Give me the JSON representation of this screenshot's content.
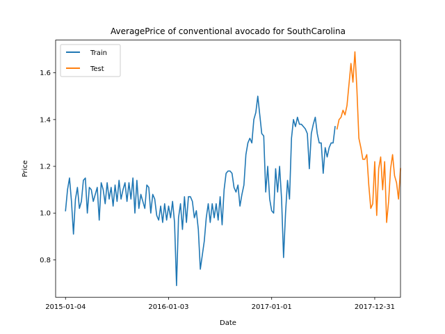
{
  "chart_data": {
    "type": "line",
    "title": "AveragePrice of conventional avocado for SouthCarolina",
    "xlabel": "Date",
    "ylabel": "Price",
    "x_type": "date",
    "xlim": [
      "2014-11-30",
      "2018-04-01"
    ],
    "ylim": [
      0.64,
      1.74
    ],
    "xticks": [
      "2015-01-04",
      "2016-01-03",
      "2017-01-01",
      "2017-12-31"
    ],
    "yticks": [
      0.8,
      1.0,
      1.2,
      1.4,
      1.6
    ],
    "ytick_labels": [
      "0.8",
      "1.0",
      "1.2",
      "1.4",
      "1.6"
    ],
    "grid": false,
    "legend_position": "top-left",
    "series": [
      {
        "name": "Train",
        "color": "#1f77b4",
        "points": [
          [
            "2015-01-04",
            1.01
          ],
          [
            "2015-01-11",
            1.1
          ],
          [
            "2015-01-18",
            1.15
          ],
          [
            "2015-01-25",
            1.05
          ],
          [
            "2015-02-01",
            0.91
          ],
          [
            "2015-02-08",
            1.06
          ],
          [
            "2015-02-15",
            1.11
          ],
          [
            "2015-02-22",
            1.02
          ],
          [
            "2015-03-01",
            1.05
          ],
          [
            "2015-03-08",
            1.14
          ],
          [
            "2015-03-15",
            1.15
          ],
          [
            "2015-03-22",
            1.0
          ],
          [
            "2015-03-29",
            1.11
          ],
          [
            "2015-04-05",
            1.1
          ],
          [
            "2015-04-12",
            1.05
          ],
          [
            "2015-04-19",
            1.08
          ],
          [
            "2015-04-26",
            1.11
          ],
          [
            "2015-05-03",
            0.97
          ],
          [
            "2015-05-10",
            1.13
          ],
          [
            "2015-05-17",
            1.1
          ],
          [
            "2015-05-24",
            1.04
          ],
          [
            "2015-05-31",
            1.13
          ],
          [
            "2015-06-07",
            1.06
          ],
          [
            "2015-06-14",
            1.11
          ],
          [
            "2015-06-21",
            1.03
          ],
          [
            "2015-06-28",
            1.12
          ],
          [
            "2015-07-05",
            1.05
          ],
          [
            "2015-07-12",
            1.14
          ],
          [
            "2015-07-19",
            1.06
          ],
          [
            "2015-07-26",
            1.1
          ],
          [
            "2015-08-02",
            1.13
          ],
          [
            "2015-08-09",
            1.05
          ],
          [
            "2015-08-16",
            1.13
          ],
          [
            "2015-08-23",
            1.06
          ],
          [
            "2015-08-30",
            1.15
          ],
          [
            "2015-09-06",
            1.0
          ],
          [
            "2015-09-13",
            1.14
          ],
          [
            "2015-09-20",
            1.02
          ],
          [
            "2015-09-27",
            1.08
          ],
          [
            "2015-10-04",
            1.05
          ],
          [
            "2015-10-11",
            1.02
          ],
          [
            "2015-10-18",
            1.12
          ],
          [
            "2015-10-25",
            1.11
          ],
          [
            "2015-11-01",
            1.0
          ],
          [
            "2015-11-08",
            1.08
          ],
          [
            "2015-11-15",
            1.06
          ],
          [
            "2015-11-22",
            0.99
          ],
          [
            "2015-11-29",
            0.97
          ],
          [
            "2015-12-06",
            1.03
          ],
          [
            "2015-12-13",
            0.96
          ],
          [
            "2015-12-20",
            1.04
          ],
          [
            "2015-12-27",
            0.97
          ],
          [
            "2016-01-03",
            1.03
          ],
          [
            "2016-01-10",
            0.98
          ],
          [
            "2016-01-17",
            1.05
          ],
          [
            "2016-01-24",
            0.96
          ],
          [
            "2016-01-31",
            0.69
          ],
          [
            "2016-02-07",
            0.98
          ],
          [
            "2016-02-14",
            1.04
          ],
          [
            "2016-02-21",
            0.93
          ],
          [
            "2016-02-28",
            1.07
          ],
          [
            "2016-03-06",
            0.96
          ],
          [
            "2016-03-13",
            1.07
          ],
          [
            "2016-03-20",
            1.07
          ],
          [
            "2016-03-27",
            1.05
          ],
          [
            "2016-04-03",
            0.98
          ],
          [
            "2016-04-10",
            1.01
          ],
          [
            "2016-04-17",
            0.93
          ],
          [
            "2016-04-24",
            0.76
          ],
          [
            "2016-05-01",
            0.82
          ],
          [
            "2016-05-08",
            0.88
          ],
          [
            "2016-05-15",
            0.98
          ],
          [
            "2016-05-22",
            1.04
          ],
          [
            "2016-05-29",
            0.96
          ],
          [
            "2016-06-05",
            1.04
          ],
          [
            "2016-06-12",
            0.98
          ],
          [
            "2016-06-19",
            1.04
          ],
          [
            "2016-06-26",
            0.97
          ],
          [
            "2016-07-03",
            1.07
          ],
          [
            "2016-07-10",
            0.95
          ],
          [
            "2016-07-17",
            1.1
          ],
          [
            "2016-07-24",
            1.17
          ],
          [
            "2016-07-31",
            1.18
          ],
          [
            "2016-08-07",
            1.18
          ],
          [
            "2016-08-14",
            1.17
          ],
          [
            "2016-08-21",
            1.11
          ],
          [
            "2016-08-28",
            1.09
          ],
          [
            "2016-09-04",
            1.12
          ],
          [
            "2016-09-11",
            1.03
          ],
          [
            "2016-09-18",
            1.08
          ],
          [
            "2016-09-25",
            1.12
          ],
          [
            "2016-10-02",
            1.25
          ],
          [
            "2016-10-09",
            1.3
          ],
          [
            "2016-10-16",
            1.32
          ],
          [
            "2016-10-23",
            1.3
          ],
          [
            "2016-10-30",
            1.4
          ],
          [
            "2016-11-06",
            1.43
          ],
          [
            "2016-11-13",
            1.5
          ],
          [
            "2016-11-20",
            1.42
          ],
          [
            "2016-11-27",
            1.34
          ],
          [
            "2016-12-04",
            1.33
          ],
          [
            "2016-12-11",
            1.09
          ],
          [
            "2016-12-18",
            1.2
          ],
          [
            "2016-12-25",
            1.06
          ],
          [
            "2017-01-01",
            1.01
          ],
          [
            "2017-01-08",
            1.0
          ],
          [
            "2017-01-15",
            1.19
          ],
          [
            "2017-01-22",
            1.09
          ],
          [
            "2017-01-29",
            1.2
          ],
          [
            "2017-02-05",
            1.06
          ],
          [
            "2017-02-12",
            0.81
          ],
          [
            "2017-02-19",
            1.0
          ],
          [
            "2017-02-26",
            1.14
          ],
          [
            "2017-03-05",
            1.06
          ],
          [
            "2017-03-12",
            1.32
          ],
          [
            "2017-03-19",
            1.4
          ],
          [
            "2017-03-26",
            1.37
          ],
          [
            "2017-04-02",
            1.41
          ],
          [
            "2017-04-09",
            1.38
          ],
          [
            "2017-04-16",
            1.38
          ],
          [
            "2017-04-23",
            1.37
          ],
          [
            "2017-04-30",
            1.36
          ],
          [
            "2017-05-07",
            1.34
          ],
          [
            "2017-05-14",
            1.19
          ],
          [
            "2017-05-21",
            1.34
          ],
          [
            "2017-05-28",
            1.38
          ],
          [
            "2017-06-04",
            1.41
          ],
          [
            "2017-06-11",
            1.34
          ],
          [
            "2017-06-18",
            1.3
          ],
          [
            "2017-06-25",
            1.3
          ],
          [
            "2017-07-02",
            1.17
          ],
          [
            "2017-07-09",
            1.28
          ],
          [
            "2017-07-16",
            1.24
          ],
          [
            "2017-07-23",
            1.28
          ],
          [
            "2017-07-30",
            1.3
          ],
          [
            "2017-08-06",
            1.3
          ],
          [
            "2017-08-13",
            1.37
          ]
        ]
      },
      {
        "name": "Test",
        "color": "#ff7f0e",
        "points": [
          [
            "2017-08-20",
            1.36
          ],
          [
            "2017-08-27",
            1.4
          ],
          [
            "2017-09-03",
            1.41
          ],
          [
            "2017-09-10",
            1.44
          ],
          [
            "2017-09-17",
            1.42
          ],
          [
            "2017-09-24",
            1.46
          ],
          [
            "2017-10-01",
            1.55
          ],
          [
            "2017-10-08",
            1.64
          ],
          [
            "2017-10-15",
            1.56
          ],
          [
            "2017-10-22",
            1.69
          ],
          [
            "2017-10-29",
            1.53
          ],
          [
            "2017-11-05",
            1.32
          ],
          [
            "2017-11-12",
            1.28
          ],
          [
            "2017-11-19",
            1.23
          ],
          [
            "2017-11-26",
            1.23
          ],
          [
            "2017-12-03",
            1.25
          ],
          [
            "2017-12-10",
            1.12
          ],
          [
            "2017-12-17",
            1.02
          ],
          [
            "2017-12-24",
            1.04
          ],
          [
            "2017-12-31",
            1.22
          ],
          [
            "2018-01-07",
            0.99
          ],
          [
            "2018-01-14",
            1.19
          ],
          [
            "2018-01-21",
            1.24
          ],
          [
            "2018-01-28",
            1.1
          ],
          [
            "2018-02-04",
            1.22
          ],
          [
            "2018-02-11",
            0.96
          ],
          [
            "2018-02-18",
            1.05
          ],
          [
            "2018-02-25",
            1.19
          ],
          [
            "2018-03-04",
            1.25
          ],
          [
            "2018-03-11",
            1.16
          ],
          [
            "2018-03-18",
            1.13
          ],
          [
            "2018-03-25",
            1.06
          ],
          [
            "2018-04-01",
            1.19
          ]
        ]
      }
    ]
  }
}
